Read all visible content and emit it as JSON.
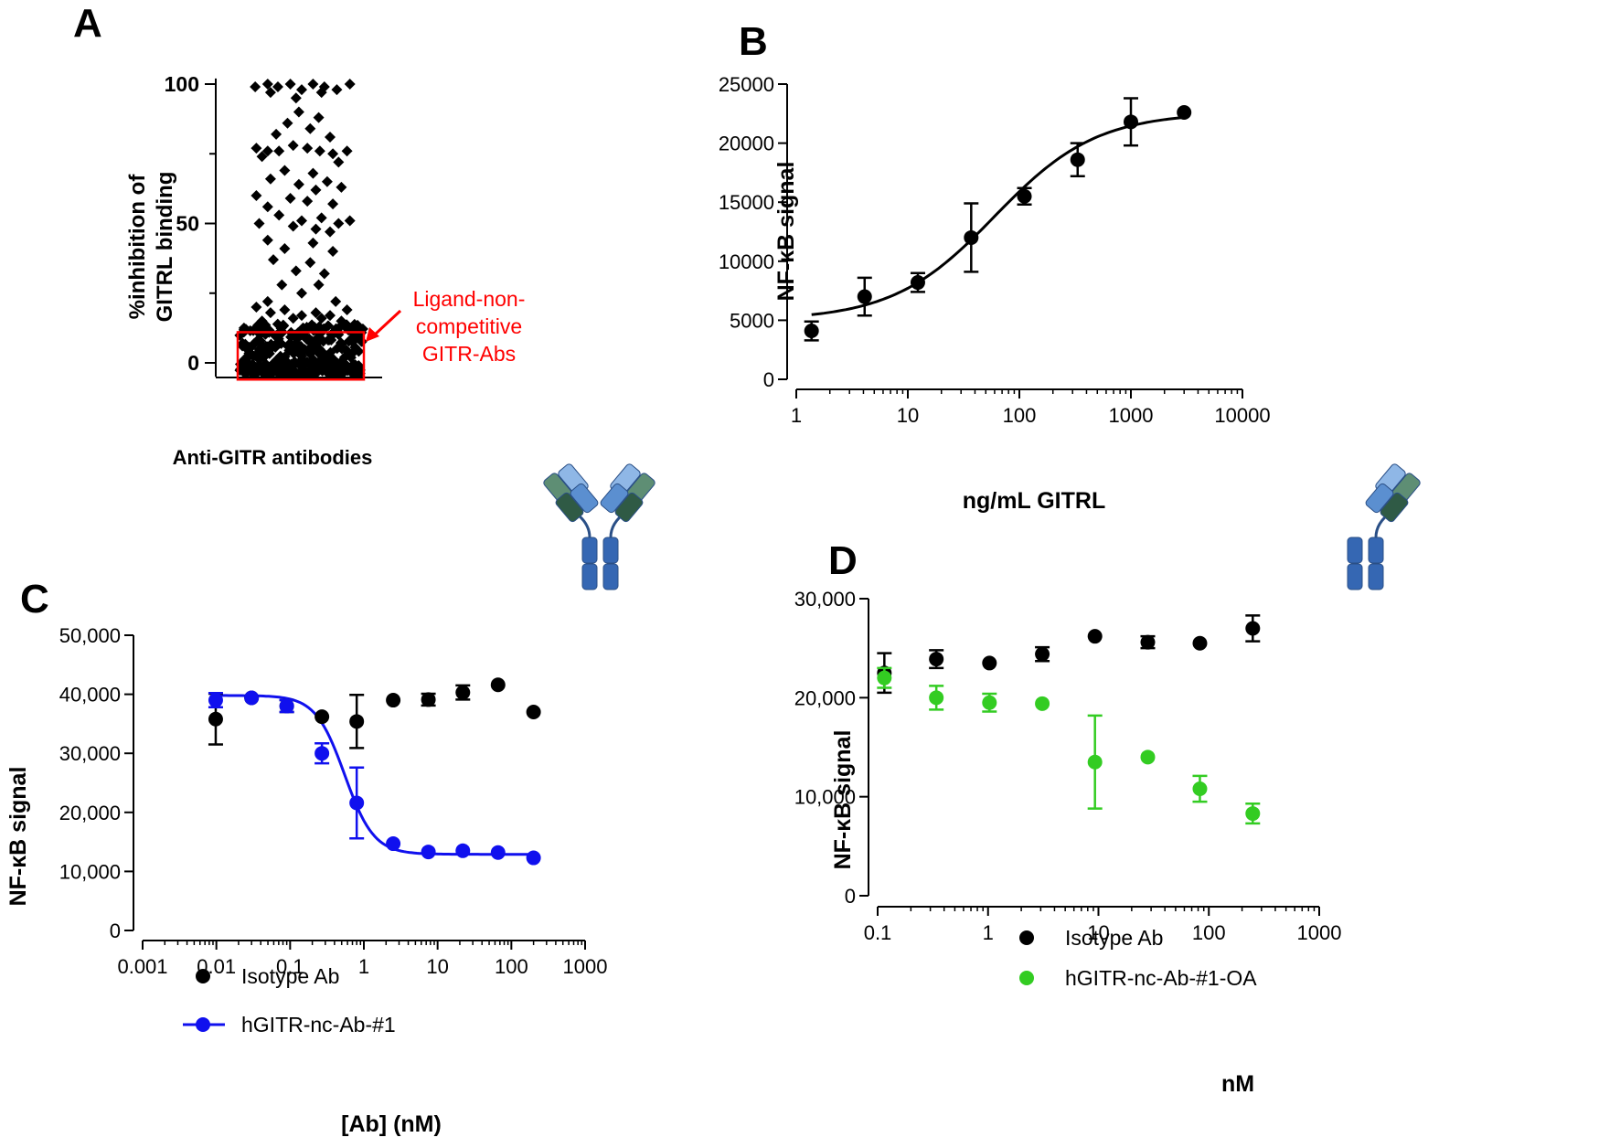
{
  "panels": {
    "A": {
      "letter": "A"
    },
    "B": {
      "letter": "B"
    },
    "C": {
      "letter": "C"
    },
    "D": {
      "letter": "D"
    }
  },
  "chart_data": [
    {
      "id": "A",
      "type": "scatter",
      "xlabel": "Anti-GITR antibodies",
      "ylabel_lines": [
        "%inhibition of",
        "GITRL binding"
      ],
      "ylim": [
        -5,
        102
      ],
      "yticks": [
        0,
        50,
        100
      ],
      "annotation": {
        "lines": [
          "Ligand-non-",
          "competitive",
          "GITR-Abs"
        ],
        "color": "#ff0000",
        "box_y_range": [
          -5,
          11
        ]
      },
      "point_color": "#000000",
      "marker": "diamond",
      "upper_points": [
        [
          -0.82,
          99
        ],
        [
          -0.6,
          100
        ],
        [
          -0.42,
          99
        ],
        [
          -0.2,
          100
        ],
        [
          0.0,
          98
        ],
        [
          0.2,
          100
        ],
        [
          0.4,
          99
        ],
        [
          0.62,
          98
        ],
        [
          0.85,
          100
        ],
        [
          -0.55,
          97
        ],
        [
          0.35,
          97
        ],
        [
          -0.1,
          95
        ],
        [
          -0.05,
          90
        ],
        [
          0.3,
          88
        ],
        [
          -0.25,
          86
        ],
        [
          0.15,
          84
        ],
        [
          -0.45,
          82
        ],
        [
          0.5,
          81
        ],
        [
          -0.8,
          77
        ],
        [
          -0.6,
          76
        ],
        [
          -0.4,
          76
        ],
        [
          -0.15,
          78
        ],
        [
          0.1,
          77
        ],
        [
          0.32,
          76
        ],
        [
          0.55,
          75
        ],
        [
          0.8,
          76
        ],
        [
          -0.7,
          74
        ],
        [
          0.65,
          72
        ],
        [
          -0.3,
          69
        ],
        [
          0.2,
          68
        ],
        [
          -0.55,
          66
        ],
        [
          0.45,
          65
        ],
        [
          -0.05,
          64
        ],
        [
          0.7,
          63
        ],
        [
          0.25,
          62
        ],
        [
          -0.8,
          60
        ],
        [
          -0.2,
          59
        ],
        [
          0.1,
          58
        ],
        [
          0.55,
          57
        ],
        [
          -0.6,
          56
        ],
        [
          -0.4,
          53
        ],
        [
          0.35,
          52
        ],
        [
          0.0,
          51
        ],
        [
          -0.75,
          50
        ],
        [
          0.65,
          50
        ],
        [
          -0.15,
          49
        ],
        [
          0.25,
          48
        ],
        [
          0.85,
          51
        ],
        [
          0.5,
          47
        ],
        [
          -0.6,
          44
        ],
        [
          0.2,
          43
        ],
        [
          -0.3,
          41
        ],
        [
          0.55,
          40
        ],
        [
          -0.5,
          37
        ],
        [
          0.15,
          36
        ],
        [
          -0.1,
          33
        ],
        [
          0.4,
          32
        ],
        [
          -0.35,
          28
        ],
        [
          0.3,
          28
        ],
        [
          0.0,
          25
        ],
        [
          -0.6,
          22
        ],
        [
          0.6,
          22
        ],
        [
          -0.8,
          20
        ],
        [
          0.8,
          19
        ],
        [
          -0.3,
          19
        ],
        [
          0.25,
          18
        ],
        [
          -0.55,
          18
        ],
        [
          0.5,
          17
        ],
        [
          0.0,
          17
        ],
        [
          -0.15,
          16
        ],
        [
          0.35,
          16
        ],
        [
          -0.7,
          15
        ],
        [
          0.7,
          15
        ]
      ]
    },
    {
      "id": "B",
      "type": "scatter",
      "title": "",
      "xlabel": "ng/mL GITRL",
      "ylabel": "NF-κB signal",
      "xscale": "log",
      "xlim": [
        1,
        10000
      ],
      "xticks": [
        1,
        10,
        100,
        1000,
        10000
      ],
      "xticklabels": [
        "1",
        "10",
        "100",
        "1000",
        "10000"
      ],
      "ylim": [
        0,
        25000
      ],
      "yticks": [
        0,
        5000,
        10000,
        15000,
        20000,
        25000
      ],
      "yticklabels": [
        "0",
        "5000",
        "10000",
        "15000",
        "20000",
        "25000"
      ],
      "series": [
        {
          "color": "#000000",
          "points": [
            {
              "x": 1.37,
              "y": 4100,
              "err": 800
            },
            {
              "x": 4.1,
              "y": 7000,
              "err": 1600
            },
            {
              "x": 12.3,
              "y": 8200,
              "err": 800
            },
            {
              "x": 37,
              "y": 12000,
              "err": 2900
            },
            {
              "x": 111,
              "y": 15500,
              "err": 700
            },
            {
              "x": 333,
              "y": 18600,
              "err": 1400
            },
            {
              "x": 1000,
              "y": 21800,
              "err": 2000
            },
            {
              "x": 3000,
              "y": 22600,
              "err": 0
            }
          ],
          "fit": {
            "bottom": 5000,
            "top": 22600,
            "ec50": 60,
            "hill": 0.95
          }
        }
      ]
    },
    {
      "id": "C",
      "type": "scatter",
      "xlabel": "[Ab] (nM)",
      "ylabel": "NF-κB signal",
      "xscale": "log",
      "xlim": [
        0.001,
        1000
      ],
      "xticks": [
        0.001,
        0.01,
        0.1,
        1,
        10,
        100,
        1000
      ],
      "xticklabels": [
        "0.001",
        "0.01",
        "0.1",
        "1",
        "10",
        "100",
        "1000"
      ],
      "ylim": [
        0,
        50000
      ],
      "yticks": [
        0,
        10000,
        20000,
        30000,
        40000,
        50000
      ],
      "yticklabels": [
        "0",
        "10,000",
        "20,000",
        "30,000",
        "40,000",
        "50,000"
      ],
      "legend_position": "bottom-left",
      "series": [
        {
          "name": "Isotype Ab",
          "color": "#000000",
          "points": [
            {
              "x": 0.0098,
              "y": 35800,
              "err": 4300
            },
            {
              "x": 0.03,
              "y": 39400,
              "err": 0
            },
            {
              "x": 0.09,
              "y": 38000,
              "err": 1000
            },
            {
              "x": 0.27,
              "y": 36200,
              "err": 0
            },
            {
              "x": 0.8,
              "y": 35400,
              "err": 4500
            },
            {
              "x": 2.5,
              "y": 39000,
              "err": 0
            },
            {
              "x": 7.5,
              "y": 39100,
              "err": 1000
            },
            {
              "x": 22,
              "y": 40300,
              "err": 1200
            },
            {
              "x": 66,
              "y": 41600,
              "err": 0
            },
            {
              "x": 200,
              "y": 37000,
              "err": 0
            }
          ]
        },
        {
          "name": "hGITR-nc-Ab-#1",
          "color": "#1010ee",
          "points": [
            {
              "x": 0.0098,
              "y": 39000,
              "err": 1200
            },
            {
              "x": 0.03,
              "y": 39400,
              "err": 0
            },
            {
              "x": 0.09,
              "y": 38000,
              "err": 1000
            },
            {
              "x": 0.27,
              "y": 30000,
              "err": 1700
            },
            {
              "x": 0.8,
              "y": 21600,
              "err": 6000
            },
            {
              "x": 2.5,
              "y": 14700,
              "err": 0
            },
            {
              "x": 7.5,
              "y": 13300,
              "err": 0
            },
            {
              "x": 22,
              "y": 13500,
              "err": 0
            },
            {
              "x": 66,
              "y": 13200,
              "err": 0
            },
            {
              "x": 200,
              "y": 12300,
              "err": 0
            }
          ],
          "fit": {
            "bottom": 12900,
            "top": 39800,
            "ic50": 0.55,
            "hill": 2.2
          }
        }
      ]
    },
    {
      "id": "D",
      "type": "scatter",
      "xlabel": "nM",
      "ylabel": "NF-κB signal",
      "xscale": "log",
      "xlim": [
        0.1,
        1000
      ],
      "xticks": [
        0.1,
        1,
        10,
        100,
        1000
      ],
      "xticklabels": [
        "0.1",
        "1",
        "10",
        "100",
        "1000"
      ],
      "ylim": [
        0,
        30000
      ],
      "yticks": [
        0,
        10000,
        20000,
        30000
      ],
      "yticklabels": [
        "0",
        "10,000",
        "20,000",
        "30,000"
      ],
      "legend_position": "bottom-left",
      "series": [
        {
          "name": "Isotype Ab",
          "color": "#000000",
          "points": [
            {
              "x": 0.115,
              "y": 22500,
              "err": 2000
            },
            {
              "x": 0.34,
              "y": 23900,
              "err": 900
            },
            {
              "x": 1.03,
              "y": 23500,
              "err": 0
            },
            {
              "x": 3.1,
              "y": 24400,
              "err": 700
            },
            {
              "x": 9.3,
              "y": 26200,
              "err": 0
            },
            {
              "x": 28,
              "y": 25600,
              "err": 600
            },
            {
              "x": 83,
              "y": 25500,
              "err": 0
            },
            {
              "x": 250,
              "y": 27000,
              "err": 1300
            }
          ]
        },
        {
          "name": "hGITR-nc-Ab-#1-OA",
          "color": "#33cc22",
          "points": [
            {
              "x": 0.115,
              "y": 22000,
              "err": 1000
            },
            {
              "x": 0.34,
              "y": 20000,
              "err": 1200
            },
            {
              "x": 1.03,
              "y": 19500,
              "err": 900
            },
            {
              "x": 3.1,
              "y": 19400,
              "err": 0
            },
            {
              "x": 9.3,
              "y": 13500,
              "err": 4700
            },
            {
              "x": 28,
              "y": 14000,
              "err": 0
            },
            {
              "x": 83,
              "y": 10800,
              "err": 1300
            },
            {
              "x": 250,
              "y": 8300,
              "err": 1000
            }
          ]
        }
      ]
    }
  ],
  "icon_colors": {
    "light_blue": "#8fb7e6",
    "mid_blue": "#5b8fd0",
    "dark_blue": "#3567b3",
    "light_green": "#5e8e74",
    "dark_green": "#2f5a45"
  }
}
